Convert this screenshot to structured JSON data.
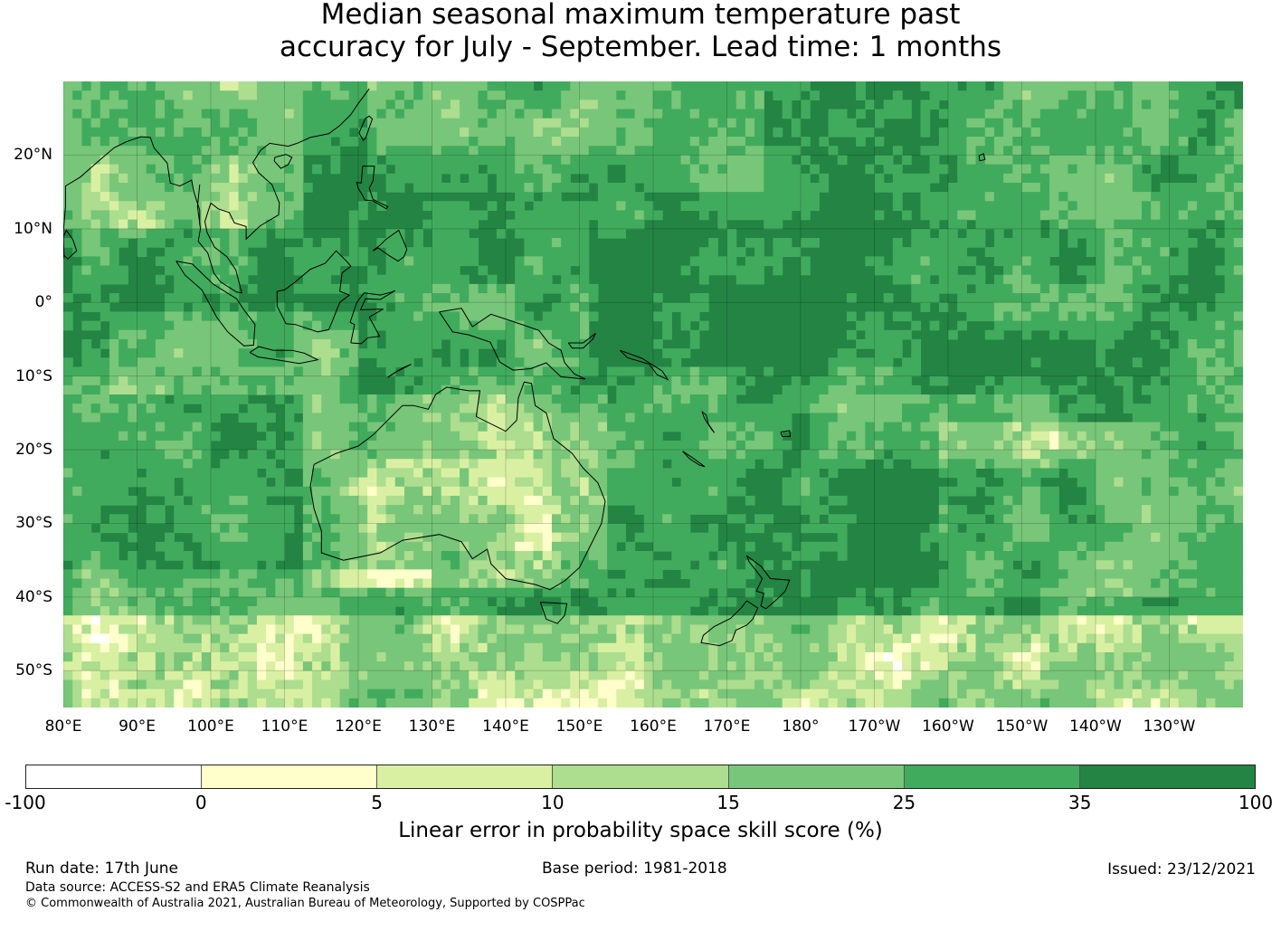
{
  "title": {
    "line1": "Median seasonal maximum temperature past",
    "line2": "accuracy for July - September. Lead time: 1 months"
  },
  "map": {
    "extent": {
      "lon_min": 80,
      "lon_max": 240,
      "lat_min": -55,
      "lat_max": 30
    },
    "lat_ticks": [
      {
        "value": 20,
        "label": "20°N"
      },
      {
        "value": 10,
        "label": "10°N"
      },
      {
        "value": 0,
        "label": "0°"
      },
      {
        "value": -10,
        "label": "10°S"
      },
      {
        "value": -20,
        "label": "20°S"
      },
      {
        "value": -30,
        "label": "30°S"
      },
      {
        "value": -40,
        "label": "40°S"
      },
      {
        "value": -50,
        "label": "50°S"
      }
    ],
    "lon_ticks": [
      {
        "value": 80,
        "label": "80°E"
      },
      {
        "value": 90,
        "label": "90°E"
      },
      {
        "value": 100,
        "label": "100°E"
      },
      {
        "value": 110,
        "label": "110°E"
      },
      {
        "value": 120,
        "label": "120°E"
      },
      {
        "value": 130,
        "label": "130°E"
      },
      {
        "value": 140,
        "label": "140°E"
      },
      {
        "value": 150,
        "label": "150°E"
      },
      {
        "value": 160,
        "label": "160°E"
      },
      {
        "value": 170,
        "label": "170°E"
      },
      {
        "value": 180,
        "label": "180°"
      },
      {
        "value": 190,
        "label": "170°W"
      },
      {
        "value": 200,
        "label": "160°W"
      },
      {
        "value": 210,
        "label": "150°W"
      },
      {
        "value": 220,
        "label": "140°W"
      },
      {
        "value": 230,
        "label": "130°W"
      }
    ],
    "grid": true
  },
  "colorbar": {
    "colors": [
      "#ffffff",
      "#ffffcc",
      "#d9f0a3",
      "#addd8e",
      "#78c679",
      "#41ab5d",
      "#238443"
    ],
    "ticks": [
      "-100",
      "0",
      "5",
      "10",
      "15",
      "25",
      "35",
      "100"
    ],
    "label": "Linear error in probability space skill score (%)"
  },
  "footer": {
    "run_date": "Run date: 17th June",
    "base_period": "Base period: 1981-2018",
    "issued": "Issued: 23/12/2021",
    "data_source": "Data source: ACCESS-S2 and ERA5 Climate Reanalysis",
    "copyright": "© Commonwealth of Australia 2021, Australian Bureau of Meteorology, Supported by COSPPac"
  }
}
